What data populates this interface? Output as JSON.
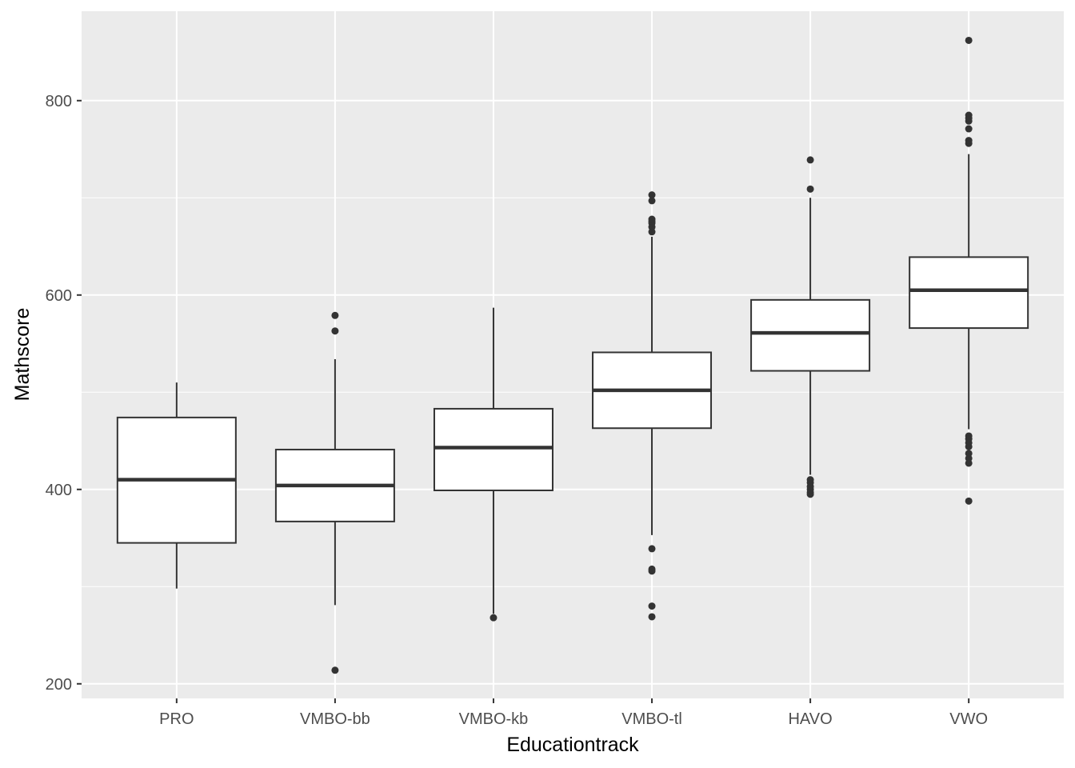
{
  "chart_data": {
    "type": "boxplot",
    "title": "",
    "xlabel": "Educationtrack",
    "ylabel": "Mathscore",
    "ylim": [
      185,
      892
    ],
    "y_ticks": [
      200,
      400,
      600,
      800
    ],
    "grid": true,
    "colors": {
      "panel": "#ebebeb",
      "grid": "#ffffff",
      "box_fill": "#ffffff",
      "box_stroke": "#333333",
      "outlier": "#333333",
      "tick_label": "#4d4d4d"
    },
    "categories": [
      "PRO",
      "VMBO-bb",
      "VMBO-kb",
      "VMBO-tl",
      "HAVO",
      "VWO"
    ],
    "boxes": [
      {
        "category": "PRO",
        "lower_whisker": 298,
        "q1": 345,
        "median": 410,
        "q3": 474,
        "upper_whisker": 510,
        "outliers": []
      },
      {
        "category": "VMBO-bb",
        "lower_whisker": 281,
        "q1": 367,
        "median": 404,
        "q3": 441,
        "upper_whisker": 534,
        "outliers": [
          214,
          563,
          579
        ]
      },
      {
        "category": "VMBO-kb",
        "lower_whisker": 272,
        "q1": 399,
        "median": 443,
        "q3": 483,
        "upper_whisker": 587,
        "outliers": [
          268
        ]
      },
      {
        "category": "VMBO-tl",
        "lower_whisker": 353,
        "q1": 463,
        "median": 502,
        "q3": 541,
        "upper_whisker": 660,
        "outliers": [
          269,
          280,
          316,
          318,
          339,
          665,
          670,
          674,
          676,
          678,
          697,
          703
        ]
      },
      {
        "category": "HAVO",
        "lower_whisker": 415,
        "q1": 522,
        "median": 561,
        "q3": 595,
        "upper_whisker": 700,
        "outliers": [
          395,
          397,
          400,
          403,
          407,
          410,
          709,
          739
        ]
      },
      {
        "category": "VWO",
        "lower_whisker": 462,
        "q1": 566,
        "median": 605,
        "q3": 639,
        "upper_whisker": 745,
        "outliers": [
          388,
          427,
          432,
          437,
          444,
          448,
          452,
          455,
          756,
          759,
          771,
          779,
          782,
          785,
          862
        ]
      }
    ]
  }
}
